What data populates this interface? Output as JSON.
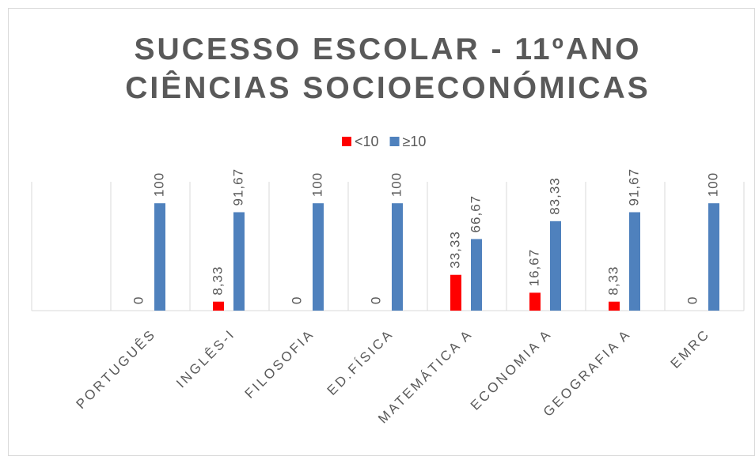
{
  "chart_data": {
    "type": "bar",
    "title": [
      "SUCESSO ESCOLAR - 11ºANO",
      "CIÊNCIAS SOCIOECONÓMICAS"
    ],
    "categories": [
      null,
      "PORTUGUÊS",
      "INGLÊS-I",
      "FILOSOFIA",
      "ED.FÍSICA",
      "MATEMÁTICA A",
      "ECONOMIA A",
      "GEOGRAFIA A",
      "EMRC"
    ],
    "series": [
      {
        "name": "<10",
        "color": "#ff0000",
        "values": [
          null,
          0,
          8.33,
          0,
          0,
          33.33,
          16.67,
          8.33,
          0
        ],
        "value_labels": [
          null,
          "0",
          "8,33",
          "0",
          "0",
          "33,33",
          "16,67",
          "8,33",
          "0"
        ]
      },
      {
        "name": "≥10",
        "color": "#4f81bd",
        "values": [
          null,
          100,
          91.67,
          100,
          100,
          66.67,
          83.33,
          91.67,
          100
        ],
        "value_labels": [
          null,
          "100",
          "91,67",
          "100",
          "100",
          "66,67",
          "83,33",
          "91,67",
          "100"
        ]
      }
    ],
    "ylim": [
      0,
      120
    ],
    "legend": "top"
  }
}
